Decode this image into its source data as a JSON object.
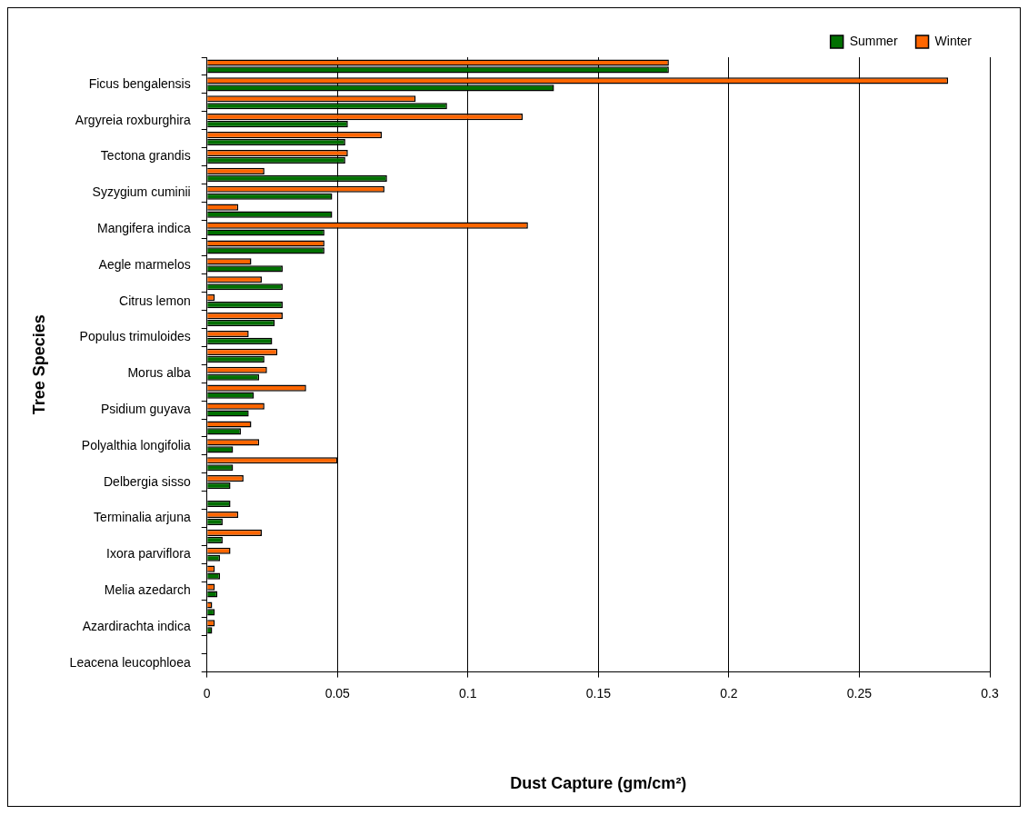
{
  "chart_data": {
    "type": "bar",
    "orientation": "horizontal",
    "xlabel": "Dust Capture (gm/cm²)",
    "ylabel": "Tree Species",
    "categories": [
      null,
      "Ficus bengalensis",
      null,
      "Argyreia roxburghira",
      null,
      "Tectona grandis",
      null,
      "Syzygium cuminii",
      null,
      "Mangifera indica",
      null,
      "Aegle marmelos",
      null,
      "Citrus lemon",
      null,
      "Populus trimuloides",
      null,
      "Morus alba",
      null,
      "Psidium guyava",
      null,
      "Polyalthia longifolia",
      null,
      "Delbergia sisso",
      null,
      "Terminalia arjuna",
      null,
      "Ixora parviflora",
      null,
      "Melia azedarch",
      null,
      "Azardirachta indica",
      null,
      "Leacena leucophloea"
    ],
    "series": [
      {
        "name": "Summer",
        "color": "#007000",
        "values": [
          0.177,
          0.133,
          0.092,
          0.054,
          0.053,
          0.053,
          0.069,
          0.048,
          0.048,
          0.045,
          0.045,
          0.029,
          0.029,
          0.029,
          0.026,
          0.025,
          0.022,
          0.02,
          0.018,
          0.016,
          0.013,
          0.01,
          0.01,
          0.009,
          0.009,
          0.006,
          0.006,
          0.005,
          0.005,
          0.004,
          0.003,
          0.002,
          null,
          null
        ]
      },
      {
        "name": "Winter",
        "color": "#ff6600",
        "values": [
          0.177,
          0.284,
          0.08,
          0.121,
          0.067,
          0.054,
          0.022,
          0.068,
          0.012,
          0.123,
          0.045,
          0.017,
          0.021,
          0.003,
          0.029,
          0.016,
          0.027,
          0.023,
          0.038,
          0.022,
          0.017,
          0.02,
          0.05,
          0.014,
          null,
          0.012,
          0.021,
          0.009,
          0.003,
          0.003,
          0.002,
          0.003,
          null,
          null
        ]
      }
    ],
    "xlim": [
      0,
      0.3
    ],
    "xticks": [
      0,
      0.05,
      0.1,
      0.15,
      0.2,
      0.25,
      0.3
    ],
    "grid": "x",
    "legend": "top right"
  }
}
